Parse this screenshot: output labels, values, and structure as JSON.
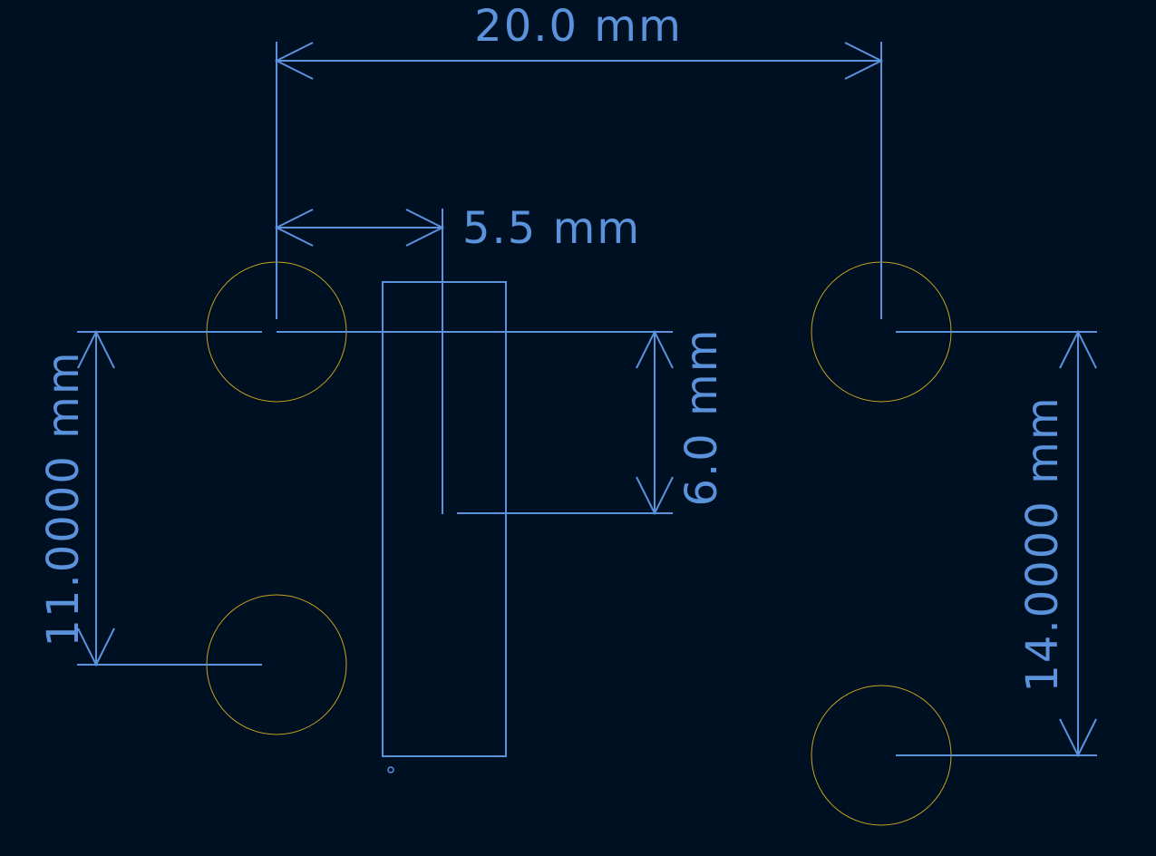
{
  "colors": {
    "background": "#001023",
    "dimension": "#5b92dc",
    "hole": "#c9a21e"
  },
  "dimensions": {
    "top_width": "20.0 mm",
    "offset": "5.5 mm",
    "right_short": "6.0 mm",
    "left_height": "11.0000 mm",
    "right_height": "14.0000 mm"
  }
}
